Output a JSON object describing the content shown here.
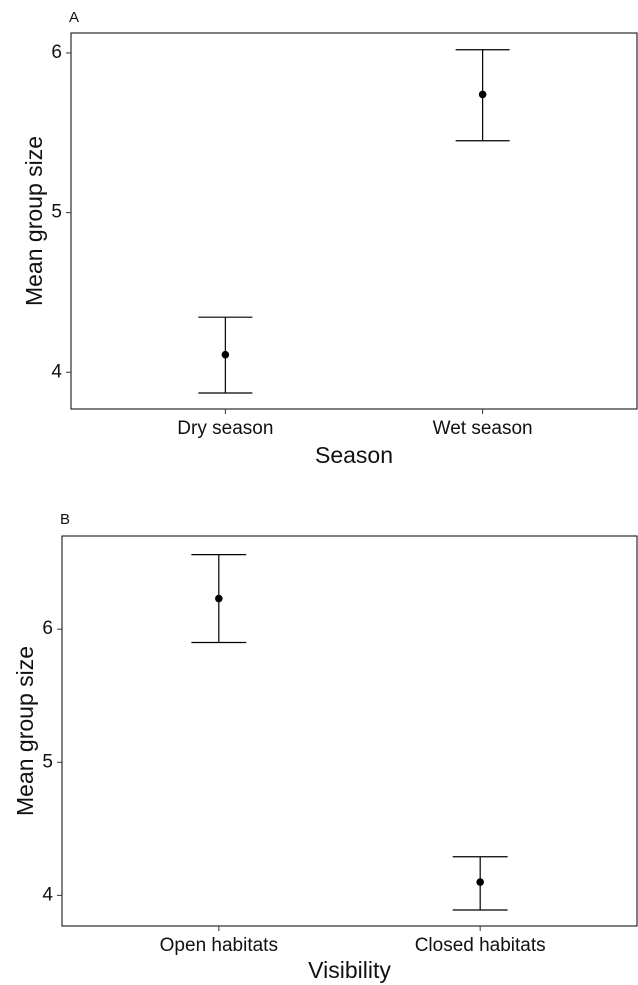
{
  "chart_data": [
    {
      "type": "errorbar",
      "panel_label": "A",
      "xlabel": "Season",
      "ylabel": "Mean group size",
      "categories": [
        "Dry season",
        "Wet season"
      ],
      "series": [
        {
          "color": "#000000",
          "values": [
            4.11,
            5.74
          ],
          "lower": [
            3.87,
            5.45
          ],
          "upper": [
            4.345,
            6.02
          ]
        }
      ],
      "ylim": [
        3.77,
        6.125
      ],
      "yticks": [
        4,
        5,
        6
      ]
    },
    {
      "type": "errorbar",
      "panel_label": "B",
      "xlabel": "Visibility",
      "ylabel": "Mean group size",
      "categories": [
        "Open habitats",
        "Closed habitats"
      ],
      "series": [
        {
          "color": "#000000",
          "values": [
            6.23,
            4.1
          ],
          "lower": [
            5.9,
            3.89
          ],
          "upper": [
            6.56,
            4.29
          ]
        }
      ],
      "ylim": [
        3.77,
        6.7
      ],
      "yticks": [
        4,
        5,
        6
      ]
    }
  ]
}
